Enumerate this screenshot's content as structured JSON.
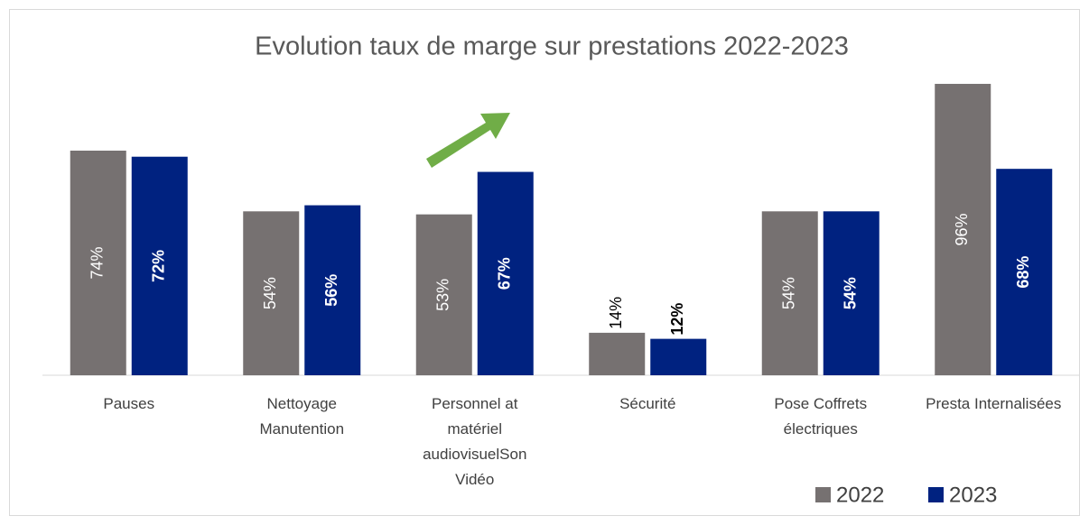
{
  "chart_data": {
    "type": "bar",
    "title": "Evolution taux de marge sur prestations 2022-2023",
    "categories": [
      "Pauses",
      "Nettoyage Manutention",
      "Personnel at matériel audiovisuelSon Vidéo",
      "Sécurité",
      "Pose Coffrets électriques",
      "Presta Internalisées"
    ],
    "series": [
      {
        "name": "2022",
        "color": "#767171",
        "values": [
          74,
          54,
          53,
          14,
          54,
          96
        ],
        "value_labels": [
          "74%",
          "54%",
          "53%",
          "14%",
          "54%",
          "96%"
        ]
      },
      {
        "name": "2023",
        "color": "#002280",
        "values": [
          72,
          56,
          67,
          12,
          54,
          68
        ],
        "value_labels": [
          "72%",
          "56%",
          "67%",
          "12%",
          "54%",
          "68%"
        ]
      }
    ],
    "ylim": [
      0,
      100
    ],
    "legend": "bottom-right"
  }
}
